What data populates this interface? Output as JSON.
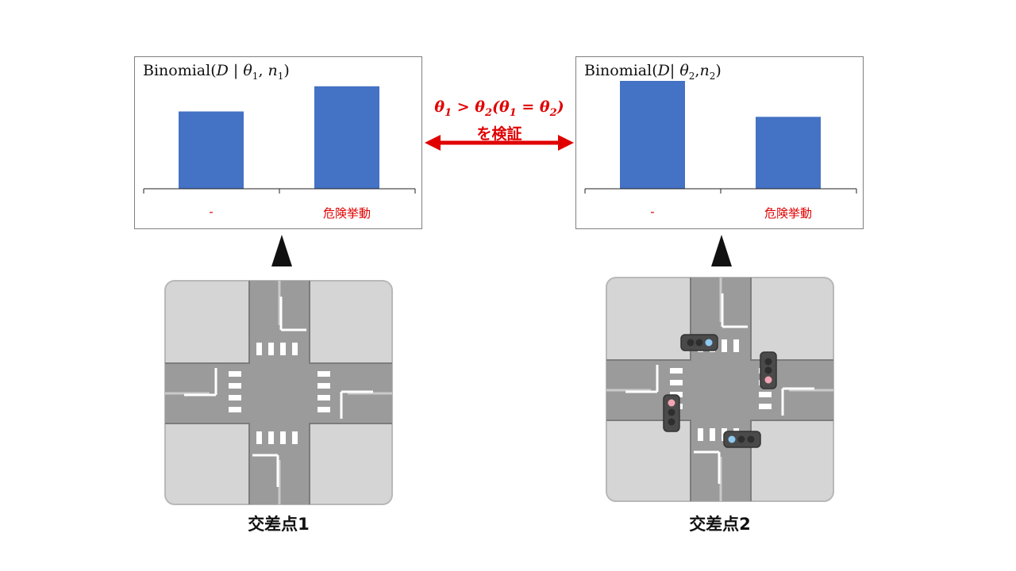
{
  "left_panel": {
    "title_parts": {
      "prefix": "Binomial(",
      "var": "D",
      "bar": " | ",
      "theta": "θ",
      "theta_sub": "1",
      "comma": ", ",
      "n": "n",
      "n_sub": "1",
      "close": ")"
    }
  },
  "right_panel": {
    "title_parts": {
      "prefix": "Binomial(",
      "var": "D",
      "bar": "| ",
      "theta": "θ",
      "theta_sub": "2",
      "comma": ",",
      "n": "n",
      "n_sub": "2",
      "close": ")"
    }
  },
  "chart_data": [
    {
      "type": "bar",
      "title": "Binomial(D | θ1, n1)",
      "categories": [
        "-",
        "危険挙動"
      ],
      "values": [
        0.43,
        0.57
      ],
      "ylim": [
        0,
        0.6
      ]
    },
    {
      "type": "bar",
      "title": "Binomial(D| θ2,n2)",
      "categories": [
        "-",
        "危険挙動"
      ],
      "values": [
        0.6,
        0.4
      ],
      "ylim": [
        0,
        0.6
      ]
    }
  ],
  "comparison": {
    "math": {
      "t1": "θ",
      "s1": "1",
      "gt": " > ",
      "t2": "θ",
      "s2": "2",
      "open": "(",
      "t3": "θ",
      "s3": "1",
      "eq": " = ",
      "t4": "θ",
      "s4": "2",
      "close": ")"
    },
    "verify_text": "を検証"
  },
  "intersections": {
    "left_label": "交差点1",
    "right_label": "交差点2"
  },
  "colors": {
    "bar": "#4472c4",
    "accent_red": "#e00000"
  }
}
